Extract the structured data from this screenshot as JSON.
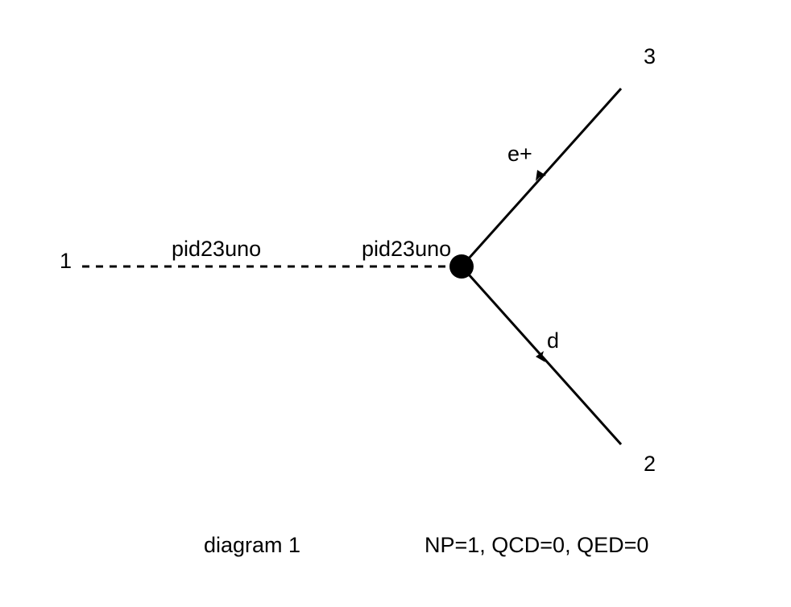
{
  "diagram": {
    "external_labels": {
      "leg1": "1",
      "leg2": "2",
      "leg3": "3"
    },
    "propagators": {
      "scalar_left": "pid23uno",
      "scalar_right": "pid23uno",
      "fermion_upper": "e+",
      "fermion_lower": "d"
    },
    "vertex_color": "#000000",
    "line_color": "#000000"
  },
  "footer": {
    "diagram_label": "diagram 1",
    "orders": "NP=1, QCD=0, QED=0"
  }
}
